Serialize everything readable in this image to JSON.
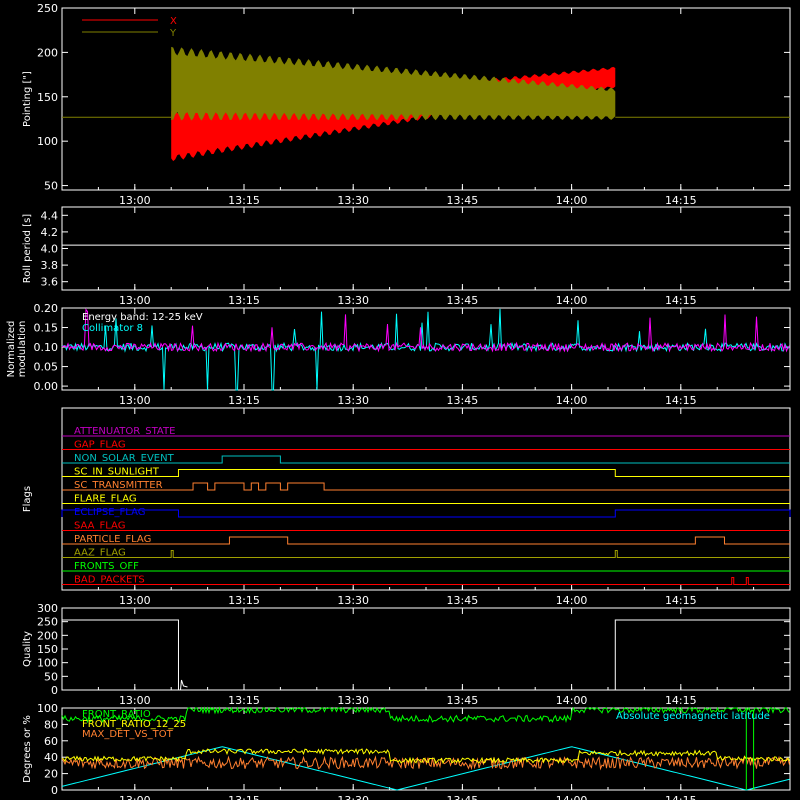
{
  "time_ticks": [
    "13:00",
    "13:15",
    "13:30",
    "13:45",
    "14:00",
    "14:15"
  ],
  "chart_data": [
    {
      "type": "line",
      "ylabel": "Pointing [\"]",
      "ylim": [
        45,
        250
      ],
      "y_ticks": [
        50,
        100,
        150,
        200,
        250
      ],
      "legend": [
        {
          "name": "X",
          "color": "#ff0000"
        },
        {
          "name": "Y",
          "color": "#808000"
        }
      ],
      "baseline": 127,
      "active_start": "13:05",
      "active_end": "14:06",
      "x_center_start": 107,
      "x_center_end": 172,
      "x_amp_start": 30,
      "x_amp_end": 12,
      "y_center_start": 165,
      "y_center_end": 142,
      "y_amp_start": 42,
      "y_amp_end": 18
    },
    {
      "type": "line",
      "ylabel": "Roll period [s]",
      "ylim": [
        3.5,
        4.5
      ],
      "y_ticks": [
        3.6,
        3.8,
        4.0,
        4.2,
        4.4
      ],
      "series": [
        {
          "name": "roll",
          "color": "#ffffff",
          "value": 4.04
        }
      ]
    },
    {
      "type": "line",
      "ylabel": "Normalized modulation",
      "ylim": [
        -0.01,
        0.2
      ],
      "y_ticks": [
        0.0,
        0.05,
        0.1,
        0.15,
        0.2
      ],
      "annotations": [
        "Energy band: 12-25 keV",
        "Collimator 8"
      ],
      "series": [
        {
          "color": "#00ffff",
          "level": 0.1
        },
        {
          "color": "#ff00ff",
          "level": 0.1
        }
      ],
      "dips": [
        "13:04",
        "13:10",
        "13:14",
        "13:19",
        "13:25"
      ]
    },
    {
      "type": "table",
      "ylabel": "Flags",
      "flags": [
        {
          "name": "ATTENUATOR_STATE",
          "color": "#c000c0",
          "on": []
        },
        {
          "name": "GAP_FLAG",
          "color": "#ff0000",
          "on": []
        },
        {
          "name": "NON_SOLAR_EVENT",
          "color": "#00c0c0",
          "on": [
            [
              "13:12",
              "13:20"
            ]
          ]
        },
        {
          "name": "SC_IN_SUNLIGHT",
          "color": "#ffff00",
          "on": [
            [
              "13:06",
              "14:06"
            ]
          ]
        },
        {
          "name": "SC_TRANSMITTER",
          "color": "#ff8030",
          "on": [
            [
              "13:08",
              "13:10"
            ],
            [
              "13:11",
              "13:15"
            ],
            [
              "13:16",
              "13:17"
            ],
            [
              "13:18",
              "13:20"
            ],
            [
              "13:21",
              "13:26"
            ]
          ]
        },
        {
          "name": "FLARE_FLAG",
          "color": "#ffff00",
          "on": []
        },
        {
          "name": "ECLIPSE_FLAG",
          "color": "#0000ff",
          "on": [
            [
              "12:50",
              "13:06"
            ],
            [
              "14:06",
              "14:30"
            ]
          ]
        },
        {
          "name": "SAA_FLAG",
          "color": "#ff0000",
          "on": []
        },
        {
          "name": "PARTICLE_FLAG",
          "color": "#ff8030",
          "on": [
            [
              "13:13",
              "13:21"
            ],
            [
              "14:17",
              "14:21"
            ]
          ]
        },
        {
          "name": "AAZ_FLAG",
          "color": "#a0a000",
          "on": [
            [
              "13:05",
              "13:05"
            ],
            [
              "14:06",
              "14:06"
            ]
          ]
        },
        {
          "name": "FRONTS_OFF",
          "color": "#00ff00",
          "on": []
        },
        {
          "name": "BAD_PACKETS",
          "color": "#ff0000",
          "on": [
            [
              "14:22",
              "14:22"
            ],
            [
              "14:24",
              "14:24"
            ]
          ]
        }
      ]
    },
    {
      "type": "line",
      "ylabel": "Quality",
      "ylim": [
        0,
        300
      ],
      "y_ticks": [
        0,
        50,
        100,
        150,
        200,
        250,
        300
      ],
      "series": [
        {
          "color": "#ffffff",
          "high": 256,
          "segments": [
            [
              "12:50",
              "13:06"
            ],
            [
              "14:06",
              "14:30"
            ]
          ]
        }
      ]
    },
    {
      "type": "line",
      "ylabel": "Degrees or %",
      "ylim": [
        0,
        100
      ],
      "y_ticks": [
        0,
        20,
        40,
        60,
        80,
        100
      ],
      "legend": [
        {
          "name": "FRONT_RATIO",
          "color": "#00ff00"
        },
        {
          "name": "FRONT_RATIO_12_25",
          "color": "#ffff00"
        },
        {
          "name": "MAX_DET_VS_TOT",
          "color": "#ff8030"
        },
        {
          "name": "Absolute geomagnetic latitude",
          "color": "#00ffff"
        }
      ]
    }
  ]
}
